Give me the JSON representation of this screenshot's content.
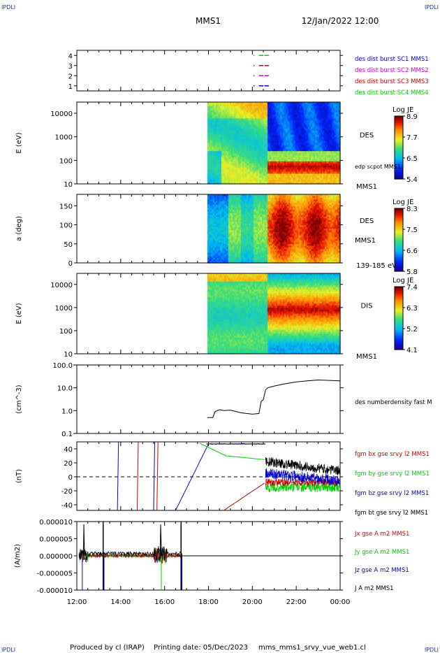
{
  "corner_mark": "IPDLI",
  "header": {
    "title": "MMS1",
    "datetime": "12/Jan/2022 12:00"
  },
  "footer": {
    "produced": "Produced by cl (IRAP)",
    "printing": "Printing date: 05/Dec/2023",
    "filename": "mms_mms1_srvy_vue_web1.cl"
  },
  "x_axis": {
    "ticks": [
      "12:00",
      "14:00",
      "16:00",
      "18:00",
      "20:00",
      "22:00",
      "00:00"
    ],
    "range_hours": [
      12,
      24
    ]
  },
  "colors": {
    "red": "#d00000",
    "magenta": "#d000d0",
    "blue": "#0000d0",
    "green": "#00cc00",
    "black": "#000000"
  },
  "chart_data": [
    {
      "type": "scatter",
      "id": "burst",
      "yticks": [
        "1",
        "2",
        "3",
        "4"
      ],
      "ylim": [
        0.5,
        4.5
      ],
      "labels": [
        {
          "text": "des dist burst SC1 MMS1",
          "color": "#0000d0"
        },
        {
          "text": "des dist burst SC2 MMS2",
          "color": "#d000d0"
        },
        {
          "text": "des dist burst SC3 MMS3",
          "color": "#d00000"
        },
        {
          "text": "des dist burst SC4 MMS4",
          "color": "#00cc00"
        }
      ],
      "series": [
        {
          "level": 4,
          "color": "#00cc00",
          "segments": [
            [
              20.05,
              20.05
            ],
            [
              20.3,
              20.5
            ],
            [
              20.55,
              20.75
            ]
          ]
        },
        {
          "level": 3,
          "color": "#d00000",
          "segments": [
            [
              20.05,
              20.05
            ],
            [
              20.3,
              20.5
            ],
            [
              20.55,
              20.75
            ]
          ]
        },
        {
          "level": 2,
          "color": "#d000d0",
          "segments": [
            [
              20.05,
              20.05
            ],
            [
              20.3,
              20.5
            ],
            [
              20.55,
              20.75
            ]
          ]
        },
        {
          "level": 1,
          "color": "#0000d0",
          "segments": [
            [
              20.05,
              20.05
            ],
            [
              20.3,
              20.5
            ],
            [
              20.55,
              20.75
            ]
          ]
        }
      ]
    },
    {
      "type": "heatmap",
      "id": "des_energy",
      "ylabel": "E (eV)",
      "yscale": "log",
      "ylim": [
        10,
        30000
      ],
      "yticks": [
        "10",
        "100",
        "1000",
        "10000"
      ],
      "data_start_hour": 17.95,
      "label": "DES",
      "sublabel": "edp scpot MMS1",
      "corner_label": "MMS1",
      "colorbar": {
        "title": "Log JE",
        "ticks": [
          "8.9",
          "7.7",
          "6.5",
          "5.4"
        ],
        "range": [
          5.4,
          8.9
        ]
      }
    },
    {
      "type": "heatmap",
      "id": "des_pitch",
      "ylabel": "a (deg)",
      "ylim": [
        0,
        180
      ],
      "yticks": [
        "0",
        "50",
        "100",
        "150"
      ],
      "data_start_hour": 17.95,
      "label": "DES",
      "sublabel": "MMS1",
      "corner_label": "139-185 eV",
      "colorbar": {
        "title": "Log JE",
        "ticks": [
          "8.3",
          "7.5",
          "6.6",
          "5.8"
        ],
        "range": [
          5.8,
          8.3
        ]
      }
    },
    {
      "type": "heatmap",
      "id": "dis_energy",
      "ylabel": "E (eV)",
      "yscale": "log",
      "ylim": [
        10,
        30000
      ],
      "yticks": [
        "10",
        "100",
        "1000",
        "10000"
      ],
      "data_start_hour": 17.95,
      "label": "DIS",
      "corner_label": "MMS1",
      "colorbar": {
        "title": "Log JE",
        "ticks": [
          "7.4",
          "6.3",
          "5.2",
          "4.1"
        ],
        "range": [
          4.1,
          7.4
        ]
      }
    },
    {
      "type": "line",
      "id": "density",
      "ylabel": "(cm^-3)",
      "yscale": "log",
      "ylim": [
        0.1,
        100
      ],
      "yticks": [
        "0.1",
        "1.0",
        "10.0",
        "100.0"
      ],
      "series": [
        {
          "name": "des numberdensity fast M",
          "color": "#000000",
          "x": [
            17.95,
            18.2,
            18.3,
            18.5,
            18.7,
            19.0,
            19.5,
            20.0,
            20.3,
            20.4,
            20.5,
            20.6,
            20.7,
            21.0,
            21.5,
            22.0,
            22.5,
            23.0,
            23.5,
            24.0
          ],
          "y": [
            0.5,
            0.5,
            0.9,
            1.1,
            1.0,
            1.05,
            0.8,
            0.7,
            0.75,
            2.5,
            3.0,
            8.0,
            10,
            12,
            15,
            18,
            20,
            22,
            21,
            20
          ]
        }
      ]
    },
    {
      "type": "line",
      "id": "fgm",
      "ylabel": "(nT)",
      "ylim": [
        -48,
        50
      ],
      "yticks": [
        "-40",
        "-20",
        "0",
        "20",
        "40"
      ],
      "series": [
        {
          "name": "fgm bx gse srvy l2 MMS1",
          "color": "#d00000"
        },
        {
          "name": "fgm by gse srvy l2 MMS1",
          "color": "#00cc00"
        },
        {
          "name": "fgm bz gse srvy l2 MMS1",
          "color": "#0000d0"
        },
        {
          "name": "fgm bt gse srvy l2 MMS1",
          "color": "#000000"
        }
      ]
    },
    {
      "type": "line",
      "id": "current",
      "ylabel": "(A/m2)",
      "ylim": [
        -0.0001,
        0.0001
      ],
      "yticks": [
        "-0.000010",
        "-0.000005",
        "0.000000",
        "0.000005",
        "0.000010"
      ],
      "series": [
        {
          "name": "Jx gse A m2 MMS1",
          "color": "#d00000"
        },
        {
          "name": "Jy gse A m2 MMS1",
          "color": "#00cc00"
        },
        {
          "name": "Jz gse A m2 MMS1",
          "color": "#0000d0"
        },
        {
          "name": "J A m2 MMS1",
          "color": "#000000"
        }
      ]
    }
  ]
}
